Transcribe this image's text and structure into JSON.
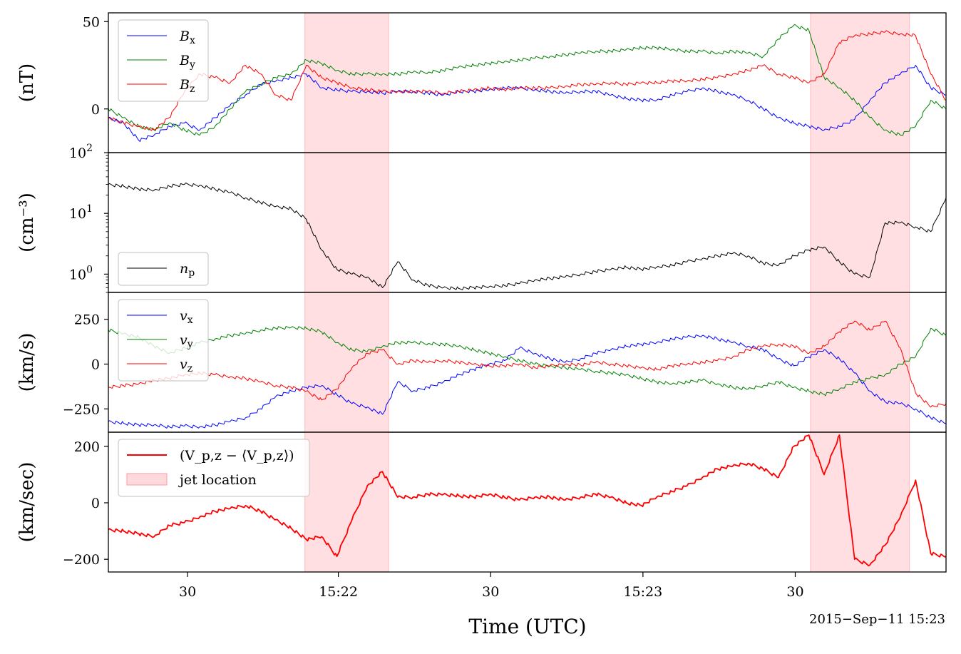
{
  "chart_data": [
    {
      "type": "line",
      "ylabel": "(nT)",
      "ylim": [
        -25,
        55
      ],
      "yticks": [
        {
          "v": 0,
          "label": "0"
        },
        {
          "v": 50,
          "label": "50"
        }
      ],
      "legend": "top-left",
      "series": [
        {
          "name": "B",
          "sub": "x",
          "color": "#0000ff",
          "x": [
            0,
            1,
            2,
            3,
            4,
            5,
            6,
            7,
            8,
            9,
            10,
            11,
            12,
            13,
            14,
            15,
            16,
            17,
            18,
            19,
            20,
            21,
            22,
            23,
            24,
            25,
            26,
            27,
            28,
            29,
            30,
            31,
            32,
            33,
            34,
            35,
            36,
            37,
            38,
            39,
            40,
            41,
            42,
            43,
            44,
            45,
            46,
            47,
            48,
            49,
            50,
            51,
            52,
            53,
            54,
            55
          ],
          "values": [
            -5,
            -8,
            -18,
            -15,
            -10,
            -8,
            -12,
            -5,
            2,
            8,
            14,
            16,
            18,
            20,
            12,
            11,
            10,
            10,
            9,
            10,
            10,
            9,
            8,
            10,
            10,
            11,
            12,
            12,
            11,
            10,
            9,
            10,
            10,
            8,
            6,
            5,
            5,
            8,
            10,
            12,
            10,
            8,
            5,
            0,
            -5,
            -8,
            -10,
            -12,
            -10,
            -6,
            5,
            15,
            20,
            25,
            12,
            8
          ]
        },
        {
          "name": "B",
          "sub": "y",
          "color": "#008000",
          "x": [
            0,
            1,
            2,
            3,
            4,
            5,
            6,
            7,
            8,
            9,
            10,
            11,
            12,
            13,
            14,
            15,
            16,
            17,
            18,
            19,
            20,
            21,
            22,
            23,
            24,
            25,
            26,
            27,
            28,
            29,
            30,
            31,
            32,
            33,
            34,
            35,
            36,
            37,
            38,
            39,
            40,
            41,
            42,
            43,
            44,
            45,
            46,
            47,
            48,
            49,
            50,
            51,
            52,
            53,
            54,
            55
          ],
          "values": [
            0,
            -5,
            -10,
            -12,
            -8,
            -12,
            -15,
            -10,
            0,
            10,
            14,
            18,
            20,
            28,
            26,
            22,
            20,
            20,
            20,
            20,
            21,
            21,
            22,
            24,
            25,
            26,
            27,
            28,
            29,
            30,
            31,
            32,
            33,
            33,
            34,
            35,
            35,
            34,
            33,
            33,
            32,
            33,
            32,
            30,
            40,
            48,
            45,
            18,
            12,
            5,
            -5,
            -12,
            -15,
            -10,
            5,
            0
          ]
        },
        {
          "name": "B",
          "sub": "z",
          "color": "#ff0000",
          "x": [
            0,
            1,
            2,
            3,
            4,
            5,
            6,
            7,
            8,
            9,
            10,
            11,
            12,
            13,
            14,
            15,
            16,
            17,
            18,
            19,
            20,
            21,
            22,
            23,
            24,
            25,
            26,
            27,
            28,
            29,
            30,
            31,
            32,
            33,
            34,
            35,
            36,
            37,
            38,
            39,
            40,
            41,
            42,
            43,
            44,
            45,
            46,
            47,
            48,
            49,
            50,
            51,
            52,
            53,
            54,
            55
          ],
          "values": [
            -5,
            -8,
            -10,
            -12,
            -5,
            10,
            20,
            18,
            15,
            25,
            20,
            8,
            5,
            25,
            18,
            15,
            12,
            11,
            10,
            10,
            10,
            10,
            9,
            10,
            11,
            12,
            11,
            12,
            12,
            12,
            13,
            14,
            14,
            15,
            14,
            15,
            15,
            16,
            16,
            17,
            18,
            20,
            22,
            25,
            20,
            18,
            15,
            20,
            38,
            42,
            43,
            44,
            43,
            42,
            20,
            5
          ]
        }
      ]
    },
    {
      "type": "line",
      "ylabel": "(cm⁻³)",
      "yscale": "log",
      "ylim": [
        0.5,
        100
      ],
      "yticks": [
        {
          "v": 1,
          "label": "10",
          "exp": "0"
        },
        {
          "v": 10,
          "label": "10",
          "exp": "1"
        },
        {
          "v": 100,
          "label": "10",
          "exp": "2"
        }
      ],
      "legend": "bottom-left",
      "series": [
        {
          "name": "n",
          "sub": "p",
          "color": "#000000",
          "x": [
            0,
            1,
            2,
            3,
            4,
            5,
            6,
            7,
            8,
            9,
            10,
            11,
            12,
            13,
            14,
            15,
            16,
            17,
            18,
            19,
            20,
            21,
            22,
            23,
            24,
            25,
            26,
            27,
            28,
            29,
            30,
            31,
            32,
            33,
            34,
            35,
            36,
            37,
            38,
            39,
            40,
            41,
            42,
            43,
            44,
            45,
            46,
            47,
            48,
            49,
            50,
            51,
            52,
            53,
            54,
            55
          ],
          "values": [
            30,
            28,
            25,
            24,
            28,
            30,
            29,
            25,
            22,
            18,
            15,
            13,
            12,
            8,
            2.5,
            1.2,
            1.0,
            0.9,
            0.6,
            1.6,
            0.8,
            0.65,
            0.6,
            0.58,
            0.6,
            0.62,
            0.65,
            0.7,
            0.8,
            0.85,
            0.9,
            1.0,
            1.1,
            1.2,
            1.3,
            1.2,
            1.3,
            1.4,
            1.6,
            1.8,
            2.0,
            2.2,
            2.0,
            1.5,
            1.4,
            2.0,
            2.5,
            2.8,
            1.6,
            1.0,
            0.9,
            7,
            7,
            6,
            5,
            18
          ]
        }
      ]
    },
    {
      "type": "line",
      "ylabel": "(km/s)",
      "ylim": [
        -380,
        400
      ],
      "yticks": [
        {
          "v": -250,
          "label": "−250"
        },
        {
          "v": 0,
          "label": "0"
        },
        {
          "v": 250,
          "label": "250"
        }
      ],
      "legend": "top-left",
      "series": [
        {
          "name": "v",
          "sub": "x",
          "color": "#0000ff",
          "x": [
            0,
            1,
            2,
            3,
            4,
            5,
            6,
            7,
            8,
            9,
            10,
            11,
            12,
            13,
            14,
            15,
            16,
            17,
            18,
            19,
            20,
            21,
            22,
            23,
            24,
            25,
            26,
            27,
            28,
            29,
            30,
            31,
            32,
            33,
            34,
            35,
            36,
            37,
            38,
            39,
            40,
            41,
            42,
            43,
            44,
            45,
            46,
            47,
            48,
            49,
            50,
            51,
            52,
            53,
            54,
            55
          ],
          "values": [
            -320,
            -330,
            -340,
            -340,
            -350,
            -345,
            -350,
            -340,
            -320,
            -300,
            -250,
            -180,
            -150,
            -130,
            -120,
            -170,
            -220,
            -240,
            -280,
            -100,
            -150,
            -130,
            -100,
            -60,
            -30,
            0,
            20,
            90,
            60,
            30,
            10,
            30,
            60,
            80,
            100,
            110,
            120,
            140,
            150,
            160,
            140,
            120,
            100,
            80,
            30,
            -10,
            40,
            80,
            30,
            -50,
            -150,
            -210,
            -220,
            -250,
            -300,
            -330
          ]
        },
        {
          "name": "v",
          "sub": "y",
          "color": "#008000",
          "x": [
            0,
            1,
            2,
            3,
            4,
            5,
            6,
            7,
            8,
            9,
            10,
            11,
            12,
            13,
            14,
            15,
            16,
            17,
            18,
            19,
            20,
            21,
            22,
            23,
            24,
            25,
            26,
            27,
            28,
            29,
            30,
            31,
            32,
            33,
            34,
            35,
            36,
            37,
            38,
            39,
            40,
            41,
            42,
            43,
            44,
            45,
            46,
            47,
            48,
            49,
            50,
            51,
            52,
            53,
            54,
            55
          ],
          "values": [
            190,
            170,
            150,
            100,
            60,
            90,
            120,
            140,
            160,
            170,
            190,
            200,
            205,
            200,
            180,
            120,
            80,
            70,
            100,
            120,
            120,
            115,
            110,
            100,
            80,
            60,
            40,
            20,
            0,
            -10,
            -20,
            -30,
            -40,
            -50,
            -60,
            -80,
            -100,
            -110,
            -100,
            -90,
            -110,
            -130,
            -140,
            -120,
            -100,
            -130,
            -150,
            -170,
            -140,
            -100,
            -80,
            -60,
            0,
            40,
            200,
            160
          ]
        },
        {
          "name": "v",
          "sub": "z",
          "color": "#ff0000",
          "x": [
            0,
            1,
            2,
            3,
            4,
            5,
            6,
            7,
            8,
            9,
            10,
            11,
            12,
            13,
            14,
            15,
            16,
            17,
            18,
            19,
            20,
            21,
            22,
            23,
            24,
            25,
            26,
            27,
            28,
            29,
            30,
            31,
            32,
            33,
            34,
            35,
            36,
            37,
            38,
            39,
            40,
            41,
            42,
            43,
            44,
            45,
            46,
            47,
            48,
            49,
            50,
            51,
            52,
            53,
            54,
            55
          ],
          "values": [
            -130,
            -120,
            -110,
            -90,
            -80,
            -60,
            -50,
            -60,
            -70,
            -80,
            -100,
            -120,
            -130,
            -150,
            -200,
            -140,
            -20,
            60,
            80,
            0,
            20,
            10,
            20,
            10,
            0,
            -10,
            -10,
            0,
            -20,
            -10,
            0,
            -5,
            10,
            0,
            -10,
            -20,
            -30,
            -10,
            0,
            10,
            20,
            40,
            80,
            100,
            110,
            100,
            60,
            100,
            180,
            240,
            190,
            240,
            90,
            -160,
            -240,
            -220
          ]
        }
      ]
    },
    {
      "type": "line",
      "ylabel": "(km/sec)",
      "ylim": [
        -245,
        250
      ],
      "yticks": [
        {
          "v": -200,
          "label": "−200"
        },
        {
          "v": 0,
          "label": "0"
        },
        {
          "v": 200,
          "label": "200"
        }
      ],
      "legend": "top-left",
      "series": [
        {
          "name": "(V_p,z − ⟨V_p,z⟩)",
          "color": "#ff0000",
          "x": [
            0,
            1,
            2,
            3,
            4,
            5,
            6,
            7,
            8,
            9,
            10,
            11,
            12,
            13,
            14,
            15,
            16,
            17,
            18,
            19,
            20,
            21,
            22,
            23,
            24,
            25,
            26,
            27,
            28,
            29,
            30,
            31,
            32,
            33,
            34,
            35,
            36,
            37,
            38,
            39,
            40,
            41,
            42,
            43,
            44,
            45,
            46,
            47,
            48,
            49,
            50,
            51,
            52,
            53,
            54,
            55
          ],
          "values": [
            -95,
            -100,
            -110,
            -120,
            -80,
            -70,
            -50,
            -30,
            -20,
            -10,
            -30,
            -60,
            -90,
            -130,
            -120,
            -190,
            -60,
            60,
            110,
            20,
            20,
            30,
            30,
            25,
            20,
            30,
            20,
            10,
            20,
            20,
            10,
            20,
            30,
            20,
            0,
            -10,
            20,
            40,
            60,
            90,
            120,
            130,
            140,
            120,
            90,
            200,
            240,
            100,
            240,
            -200,
            -220,
            -150,
            -50,
            80,
            -180,
            -190
          ]
        }
      ],
      "shade_label": "jet location"
    }
  ],
  "jet_intervals": [
    [
      12.9,
      18.4
    ],
    [
      46.1,
      52.6
    ]
  ],
  "x_axis": {
    "xlim": [
      0,
      55
    ],
    "ticks": [
      {
        "v": 5.2,
        "label": "30"
      },
      {
        "v": 15.1,
        "label": "15:22"
      },
      {
        "v": 25.1,
        "label": "30"
      },
      {
        "v": 35.1,
        "label": "15:23"
      },
      {
        "v": 45.1,
        "label": "30"
      }
    ],
    "xlabel": "Time (UTC)",
    "date_label": "2015−Sep−11 15:23"
  }
}
